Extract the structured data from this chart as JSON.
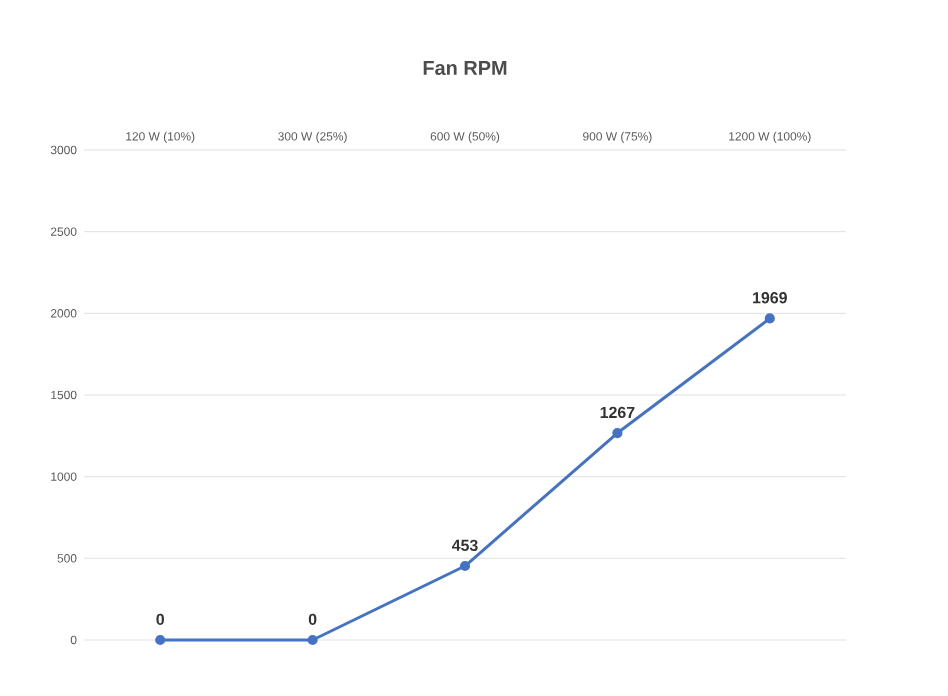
{
  "chart_data": {
    "type": "line",
    "title": "Fan RPM",
    "categories": [
      "120 W (10%)",
      "300 W (25%)",
      "600 W (50%)",
      "900 W (75%)",
      "1200 W (100%)"
    ],
    "values": [
      0,
      0,
      453,
      1267,
      1969
    ],
    "color": "#4472c4",
    "ylim": [
      0,
      3000
    ],
    "yticks": [
      0,
      500,
      1000,
      1500,
      2000,
      2500,
      3000
    ],
    "grid": "y",
    "marker": "circle",
    "line_style": "solid",
    "data_labels": true
  }
}
